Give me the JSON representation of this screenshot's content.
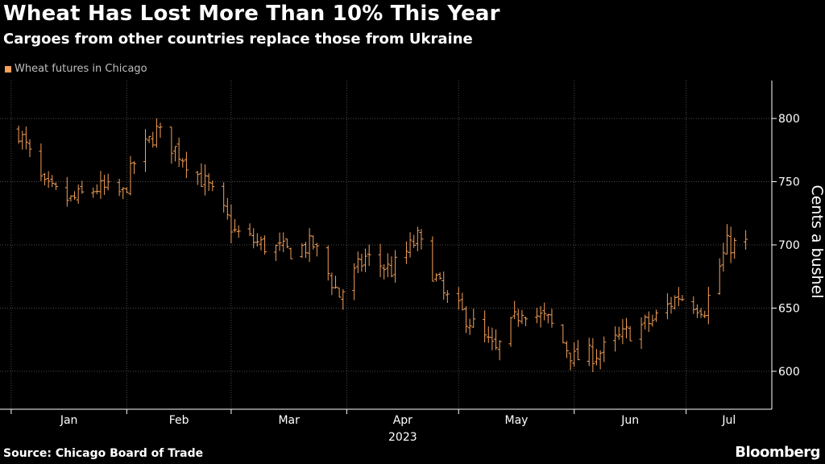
{
  "header": {
    "title": "Wheat Has Lost More Than 10% This Year",
    "subtitle": "Cargoes from other countries replace those from Ukraine"
  },
  "footer": {
    "source": "Source: Chicago Board of Trade",
    "brand": "Bloomberg"
  },
  "colors": {
    "background": "#000000",
    "series": "#f4a05a",
    "grid": "#4a4a4a",
    "text": "#ffffff",
    "muted": "#bfbfbf"
  },
  "chart_data": {
    "type": "line",
    "style": "ohlc-bars",
    "xlabel": "",
    "ylabel": "Cents a bushel",
    "year_label": "2023",
    "ylim": [
      570,
      830
    ],
    "yticks": [
      600,
      650,
      700,
      750,
      800
    ],
    "x_tick_labels": [
      "Jan",
      "Feb",
      "Mar",
      "Apr",
      "May",
      "Jun",
      "Jul"
    ],
    "grid": true,
    "legend_position": "top-left",
    "series": [
      {
        "name": "Wheat futures in Chicago",
        "x": [
          "2023-01-03",
          "2023-01-10",
          "2023-01-17",
          "2023-01-24",
          "2023-01-31",
          "2023-02-03",
          "2023-02-09",
          "2023-02-16",
          "2023-02-23",
          "2023-03-02",
          "2023-03-09",
          "2023-03-16",
          "2023-03-23",
          "2023-03-30",
          "2023-04-06",
          "2023-04-13",
          "2023-04-20",
          "2023-04-27",
          "2023-05-04",
          "2023-05-11",
          "2023-05-18",
          "2023-05-25",
          "2023-06-01",
          "2023-06-08",
          "2023-06-15",
          "2023-06-22",
          "2023-06-29",
          "2023-07-06",
          "2023-07-12",
          "2023-07-17"
        ],
        "values": [
          790,
          745,
          735,
          745,
          740,
          765,
          790,
          770,
          745,
          710,
          700,
          695,
          700,
          660,
          690,
          680,
          705,
          660,
          640,
          615,
          650,
          640,
          610,
          615,
          630,
          640,
          660,
          650,
          700,
          700
        ]
      }
    ]
  }
}
